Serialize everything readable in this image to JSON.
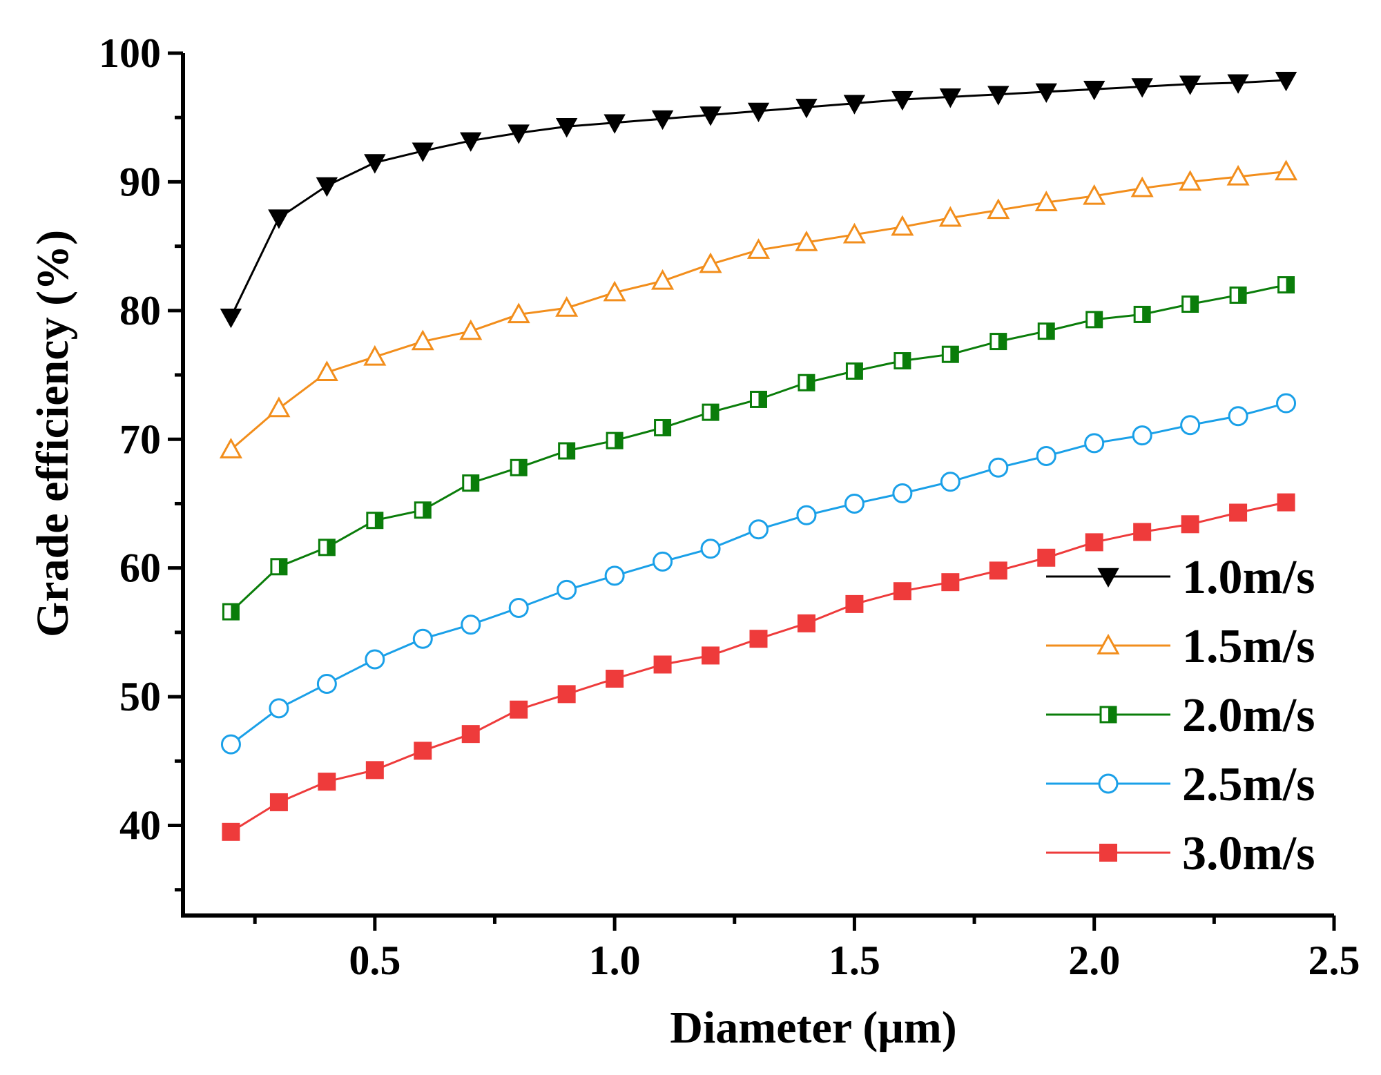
{
  "chart_data": {
    "type": "line",
    "title": "",
    "xlabel": "Diameter (μm)",
    "ylabel": "Grade efficiency (%)",
    "xlim": [
      0.1,
      2.5
    ],
    "ylim": [
      33,
      100
    ],
    "xticks": [
      0.5,
      1.0,
      1.5,
      2.0,
      2.5
    ],
    "xtick_labels": [
      "0.5",
      "1.0",
      "1.5",
      "2.0",
      "2.5"
    ],
    "yticks": [
      40,
      50,
      60,
      70,
      80,
      90,
      100
    ],
    "ytick_labels": [
      "40",
      "50",
      "60",
      "70",
      "80",
      "90",
      "100"
    ],
    "grid": false,
    "legend_position": "bottom-right",
    "x": [
      0.2,
      0.3,
      0.4,
      0.5,
      0.6,
      0.7,
      0.8,
      0.9,
      1.0,
      1.1,
      1.2,
      1.3,
      1.4,
      1.5,
      1.6,
      1.7,
      1.8,
      1.9,
      2.0,
      2.1,
      2.2,
      2.3,
      2.4
    ],
    "series": [
      {
        "name": "1.0m/s",
        "color": "#000000",
        "marker": "triangle-down-filled",
        "values": [
          79.5,
          87.2,
          89.7,
          91.5,
          92.4,
          93.2,
          93.8,
          94.3,
          94.6,
          94.9,
          95.2,
          95.5,
          95.8,
          96.1,
          96.4,
          96.6,
          96.8,
          97.0,
          97.2,
          97.4,
          97.6,
          97.7,
          97.9
        ]
      },
      {
        "name": "1.5m/s",
        "color": "#f28e1c",
        "marker": "triangle-up-open",
        "values": [
          69.2,
          72.4,
          75.2,
          76.4,
          77.6,
          78.4,
          79.7,
          80.2,
          81.4,
          82.3,
          83.6,
          84.7,
          85.3,
          85.9,
          86.5,
          87.2,
          87.8,
          88.4,
          88.9,
          89.5,
          90.0,
          90.4,
          90.8
        ]
      },
      {
        "name": "2.0m/s",
        "color": "#0a7d0a",
        "marker": "square-half-filled",
        "values": [
          56.6,
          60.1,
          61.6,
          63.7,
          64.5,
          66.6,
          67.8,
          69.1,
          69.9,
          70.9,
          72.1,
          73.1,
          74.4,
          75.3,
          76.1,
          76.6,
          77.6,
          78.4,
          79.3,
          79.7,
          80.5,
          81.2,
          82.0
        ]
      },
      {
        "name": "2.5m/s",
        "color": "#1aa0e8",
        "marker": "circle-open",
        "values": [
          46.3,
          49.1,
          51.0,
          52.9,
          54.5,
          55.6,
          56.9,
          58.3,
          59.4,
          60.5,
          61.5,
          63.0,
          64.1,
          65.0,
          65.8,
          66.7,
          67.8,
          68.7,
          69.7,
          70.3,
          71.1,
          71.8,
          72.8
        ]
      },
      {
        "name": "3.0m/s",
        "color": "#ee3b3b",
        "marker": "square-filled",
        "values": [
          39.5,
          41.8,
          43.4,
          44.3,
          45.8,
          47.1,
          49.0,
          50.2,
          51.4,
          52.5,
          53.2,
          54.5,
          55.7,
          57.2,
          58.2,
          58.9,
          59.8,
          60.8,
          62.0,
          62.8,
          63.4,
          64.3,
          65.1
        ]
      }
    ]
  }
}
